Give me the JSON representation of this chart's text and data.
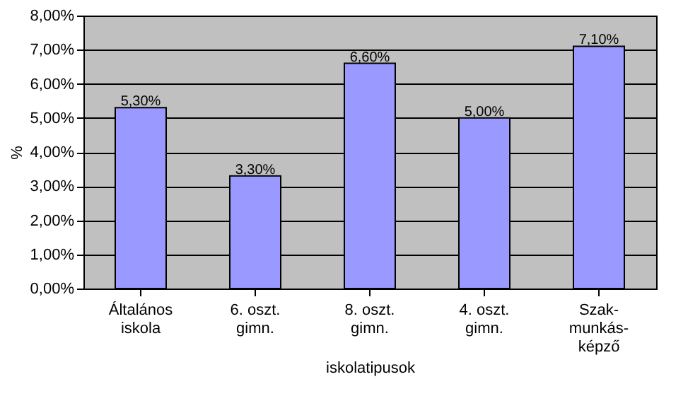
{
  "chart_data": {
    "type": "bar",
    "categories": [
      "Általános\niskola",
      "6. oszt.\ngimn.",
      "8. oszt.\ngimn.",
      "4. oszt.\ngimn.",
      "Szak-\nmunkás-\nképző"
    ],
    "values": [
      5.3,
      3.3,
      6.6,
      5.0,
      7.1
    ],
    "value_labels": [
      "5,30%",
      "3,30%",
      "6,60%",
      "5,00%",
      "7,10%"
    ],
    "color": "#9999ff",
    "xlabel": "iskolatipusok",
    "ylabel": "%",
    "ylim": [
      0,
      8
    ],
    "yticks": [
      {
        "value": 0,
        "label": "0,00%"
      },
      {
        "value": 1,
        "label": "1,00%"
      },
      {
        "value": 2,
        "label": "2,00%"
      },
      {
        "value": 3,
        "label": "3,00%"
      },
      {
        "value": 4,
        "label": "4,00%"
      },
      {
        "value": 5,
        "label": "5,00%"
      },
      {
        "value": 6,
        "label": "6,00%"
      },
      {
        "value": 7,
        "label": "7,00%"
      },
      {
        "value": 8,
        "label": "8,00%"
      }
    ],
    "grid": "y"
  }
}
